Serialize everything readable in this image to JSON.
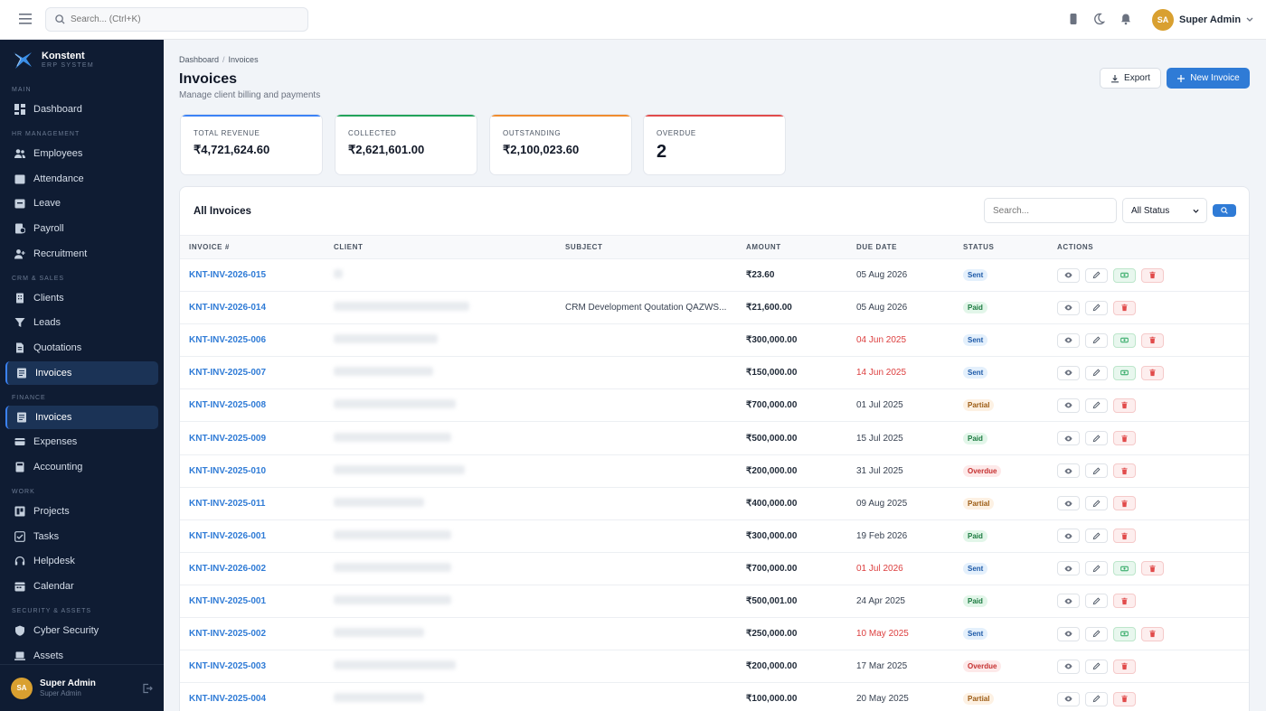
{
  "topbar": {
    "search_placeholder": "Search... (Ctrl+K)",
    "user_initials": "SA",
    "user_name": "Super Admin"
  },
  "brand": {
    "name": "Konstent",
    "subtitle": "ERP SYSTEM"
  },
  "sidebar": {
    "sections": [
      {
        "label": "MAIN",
        "items": [
          {
            "label": "Dashboard",
            "icon": "dashboard-icon"
          }
        ]
      },
      {
        "label": "HR MANAGEMENT",
        "items": [
          {
            "label": "Employees",
            "icon": "users-icon"
          },
          {
            "label": "Attendance",
            "icon": "calendar-check-icon"
          },
          {
            "label": "Leave",
            "icon": "leave-icon"
          },
          {
            "label": "Payroll",
            "icon": "payroll-icon"
          },
          {
            "label": "Recruitment",
            "icon": "user-plus-icon"
          }
        ]
      },
      {
        "label": "CRM & SALES",
        "items": [
          {
            "label": "Clients",
            "icon": "building-icon"
          },
          {
            "label": "Leads",
            "icon": "funnel-icon"
          },
          {
            "label": "Quotations",
            "icon": "document-icon"
          },
          {
            "label": "Invoices",
            "icon": "invoice-icon",
            "active": true
          }
        ]
      },
      {
        "label": "FINANCE",
        "items": [
          {
            "label": "Invoices",
            "icon": "invoice-icon",
            "active": true
          },
          {
            "label": "Expenses",
            "icon": "wallet-icon"
          },
          {
            "label": "Accounting",
            "icon": "calculator-icon"
          }
        ]
      },
      {
        "label": "WORK",
        "items": [
          {
            "label": "Projects",
            "icon": "projects-icon"
          },
          {
            "label": "Tasks",
            "icon": "checkbox-icon"
          },
          {
            "label": "Helpdesk",
            "icon": "headset-icon"
          },
          {
            "label": "Calendar",
            "icon": "calendar-icon"
          }
        ]
      },
      {
        "label": "SECURITY & ASSETS",
        "items": [
          {
            "label": "Cyber Security",
            "icon": "shield-icon"
          },
          {
            "label": "Assets",
            "icon": "laptop-icon"
          }
        ]
      }
    ],
    "user": {
      "initials": "SA",
      "name": "Super Admin",
      "role": "Super Admin"
    }
  },
  "header": {
    "breadcrumb": [
      "Dashboard",
      "Invoices"
    ],
    "title": "Invoices",
    "subtitle": "Manage client billing and payments",
    "export_label": "Export",
    "new_label": "New Invoice"
  },
  "stats": [
    {
      "label": "TOTAL REVENUE",
      "value": "₹4,721,624.60",
      "color": "#3b82f6"
    },
    {
      "label": "COLLECTED",
      "value": "₹2,621,601.00",
      "color": "#22a35a"
    },
    {
      "label": "OUTSTANDING",
      "value": "₹2,100,023.60",
      "color": "#f08c2e"
    },
    {
      "label": "OVERDUE",
      "value": "2",
      "color": "#e14b4b"
    }
  ],
  "table": {
    "title": "All Invoices",
    "search_placeholder": "Search...",
    "status_filter": "All Status",
    "columns": [
      "INVOICE #",
      "CLIENT",
      "SUBJECT",
      "AMOUNT",
      "DUE DATE",
      "STATUS",
      "ACTIONS"
    ],
    "rows": [
      {
        "invoice": "KNT-INV-2026-015",
        "subject": "",
        "amount": "₹23.60",
        "due": "05 Aug 2026",
        "overdue_date": false,
        "status": "Sent"
      },
      {
        "invoice": "KNT-INV-2026-014",
        "subject": "CRM Development Qoutation QAZWS...",
        "amount": "₹21,600.00",
        "due": "05 Aug 2026",
        "overdue_date": false,
        "status": "Paid"
      },
      {
        "invoice": "KNT-INV-2025-006",
        "subject": "",
        "amount": "₹300,000.00",
        "due": "04 Jun 2025",
        "overdue_date": true,
        "status": "Sent"
      },
      {
        "invoice": "KNT-INV-2025-007",
        "subject": "",
        "amount": "₹150,000.00",
        "due": "14 Jun 2025",
        "overdue_date": true,
        "status": "Sent"
      },
      {
        "invoice": "KNT-INV-2025-008",
        "subject": "",
        "amount": "₹700,000.00",
        "due": "01 Jul 2025",
        "overdue_date": false,
        "status": "Partial"
      },
      {
        "invoice": "KNT-INV-2025-009",
        "subject": "",
        "amount": "₹500,000.00",
        "due": "15 Jul 2025",
        "overdue_date": false,
        "status": "Paid"
      },
      {
        "invoice": "KNT-INV-2025-010",
        "subject": "",
        "amount": "₹200,000.00",
        "due": "31 Jul 2025",
        "overdue_date": false,
        "status": "Overdue"
      },
      {
        "invoice": "KNT-INV-2025-011",
        "subject": "",
        "amount": "₹400,000.00",
        "due": "09 Aug 2025",
        "overdue_date": false,
        "status": "Partial"
      },
      {
        "invoice": "KNT-INV-2026-001",
        "subject": "",
        "amount": "₹300,000.00",
        "due": "19 Feb 2026",
        "overdue_date": false,
        "status": "Paid"
      },
      {
        "invoice": "KNT-INV-2026-002",
        "subject": "",
        "amount": "₹700,000.00",
        "due": "01 Jul 2026",
        "overdue_date": true,
        "status": "Sent"
      },
      {
        "invoice": "KNT-INV-2025-001",
        "subject": "",
        "amount": "₹500,001.00",
        "due": "24 Apr 2025",
        "overdue_date": false,
        "status": "Paid"
      },
      {
        "invoice": "KNT-INV-2025-002",
        "subject": "",
        "amount": "₹250,000.00",
        "due": "10 May 2025",
        "overdue_date": true,
        "status": "Sent"
      },
      {
        "invoice": "KNT-INV-2025-003",
        "subject": "",
        "amount": "₹200,000.00",
        "due": "17 Mar 2025",
        "overdue_date": false,
        "status": "Overdue"
      },
      {
        "invoice": "KNT-INV-2025-004",
        "subject": "",
        "amount": "₹100,000.00",
        "due": "20 May 2025",
        "overdue_date": false,
        "status": "Partial"
      }
    ]
  }
}
